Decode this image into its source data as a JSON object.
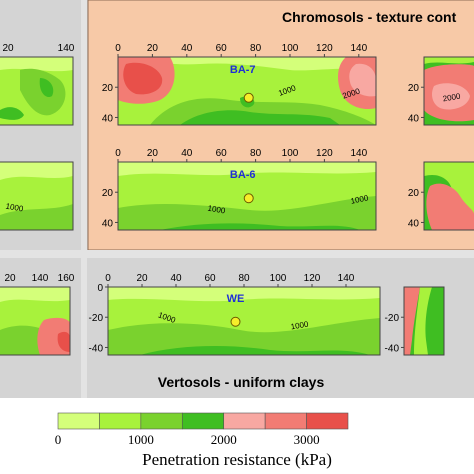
{
  "chart_data": {
    "type": "heatmap",
    "panels": [
      {
        "id": "BA-7",
        "label": "BA-7",
        "probe_x": 76,
        "probe_depth": 27,
        "x_ticks": [
          "0",
          "20",
          "40",
          "60",
          "80",
          "100",
          "120",
          "140"
        ],
        "y_ticks": [
          "20",
          "40"
        ],
        "contour_labels": [
          "1000",
          "2000"
        ]
      },
      {
        "id": "BA-6",
        "label": "BA-6",
        "probe_x": 76,
        "probe_depth": 24,
        "x_ticks": [
          "0",
          "20",
          "40",
          "60",
          "80",
          "100",
          "120",
          "140"
        ],
        "y_ticks": [
          "20",
          "40"
        ],
        "contour_labels": [
          "1000",
          "1000"
        ]
      },
      {
        "id": "WE",
        "label": "WE",
        "probe_x": 75,
        "probe_depth": 23,
        "x_ticks": [
          "0",
          "20",
          "40",
          "60",
          "80",
          "100",
          "120",
          "140"
        ],
        "y_ticks": [
          "0",
          "-20",
          "-40"
        ],
        "contour_labels": [
          "1000",
          "1000"
        ]
      },
      {
        "id": "left-top",
        "x_ticks": [
          "20",
          "140"
        ]
      },
      {
        "id": "left-bottom",
        "x_ticks": [
          "20",
          "140",
          "160"
        ],
        "y_ticks": [
          "-20",
          "-40"
        ]
      },
      {
        "id": "right-top",
        "x_ticks": [],
        "y_ticks": [
          "20",
          "40"
        ],
        "contour_labels": [
          "2000"
        ]
      },
      {
        "id": "right-middle",
        "y_ticks": [
          "20",
          "40"
        ]
      },
      {
        "id": "left-middle",
        "contour_labels": [
          "1000"
        ]
      }
    ],
    "groups": [
      {
        "title": "Chromosols - texture cont"
      },
      {
        "title": "Vertosols - uniform clays"
      }
    ],
    "legend": {
      "title": "Penetration resistance  (kPa)",
      "tick_labels": [
        "0",
        "1000",
        "2000",
        "3000"
      ],
      "bins": [
        {
          "from": 0,
          "to": 500,
          "color": "#d4ff7a"
        },
        {
          "from": 500,
          "to": 1000,
          "color": "#a8f23c"
        },
        {
          "from": 1000,
          "to": 1500,
          "color": "#7ad22e"
        },
        {
          "from": 1500,
          "to": 2000,
          "color": "#3fbe22"
        },
        {
          "from": 2000,
          "to": 2500,
          "color": "#f8a8a2"
        },
        {
          "from": 2500,
          "to": 3000,
          "color": "#f27c74"
        },
        {
          "from": 3000,
          "to": 3500,
          "color": "#e8504a"
        }
      ]
    }
  }
}
